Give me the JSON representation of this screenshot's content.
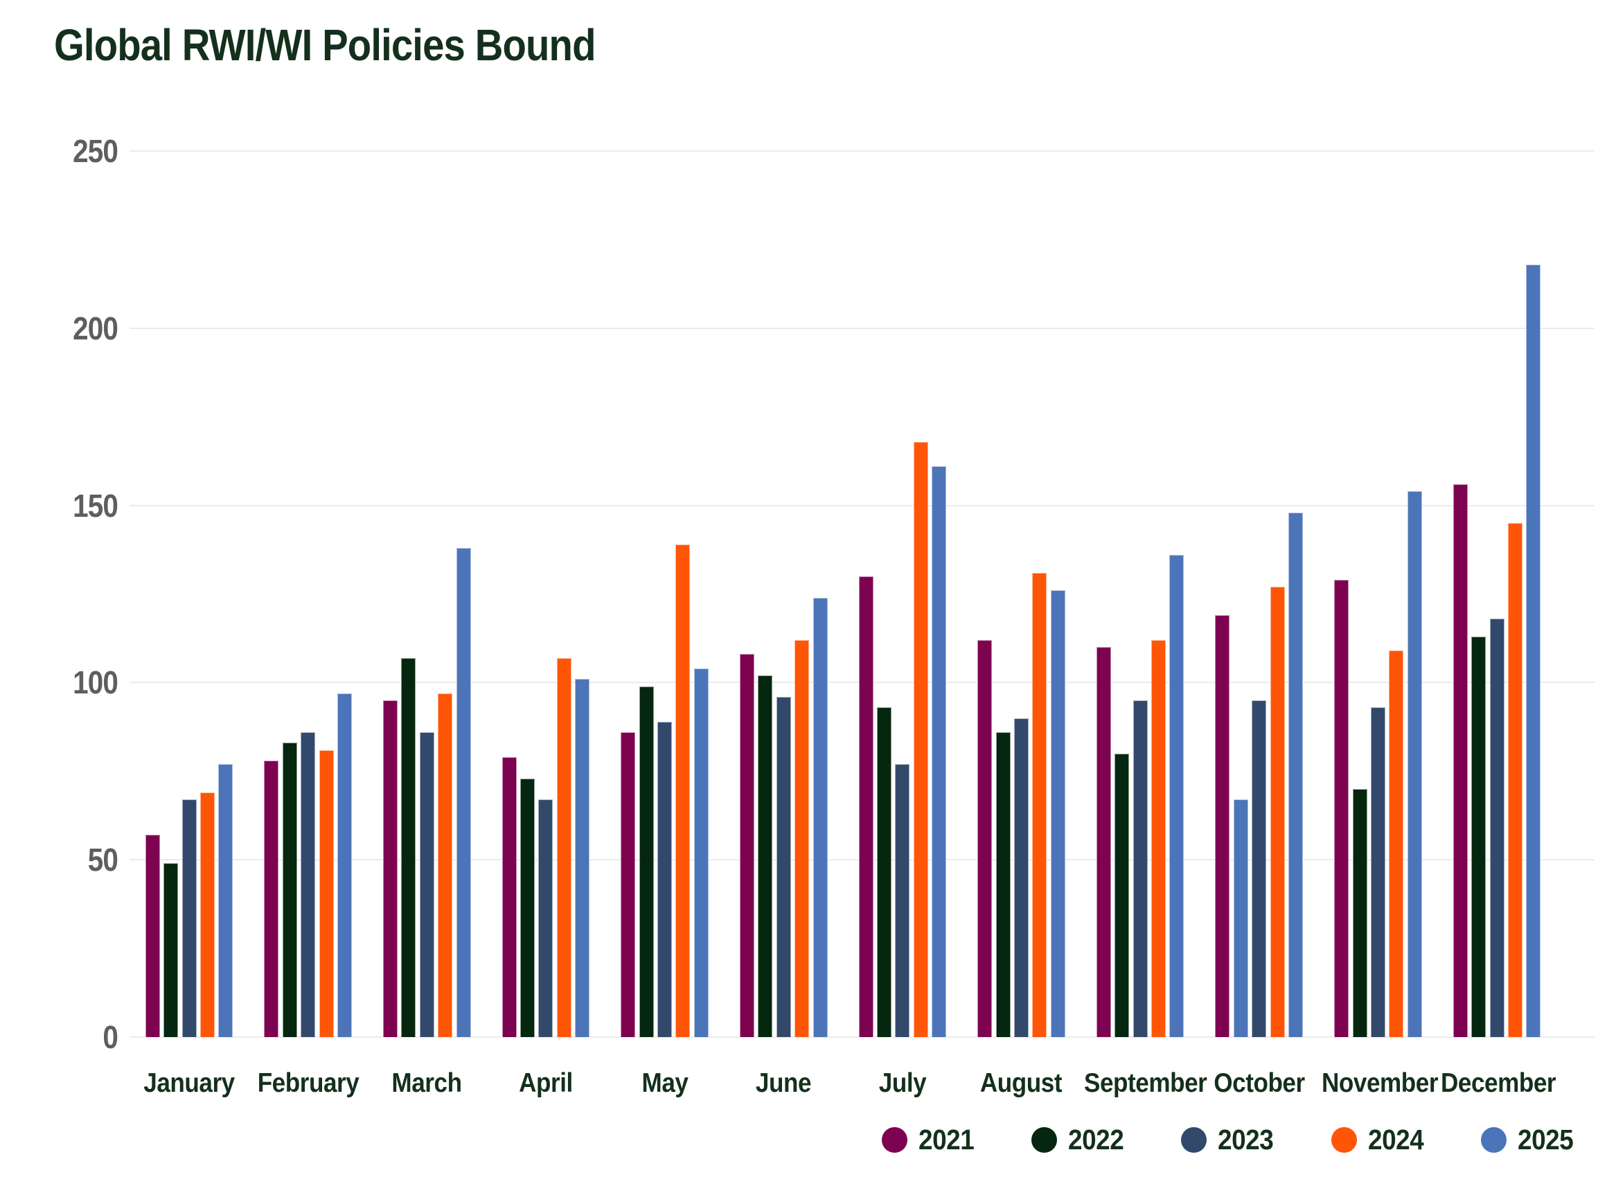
{
  "title": "Global RWI/WI Policies Bound",
  "chart_data": {
    "type": "bar",
    "categories": [
      "January",
      "February",
      "March",
      "April",
      "May",
      "June",
      "July",
      "August",
      "September",
      "October",
      "November",
      "December"
    ],
    "series": [
      {
        "name": "2021",
        "color": "#7D0351",
        "values": [
          57,
          78,
          95,
          79,
          86,
          108,
          130,
          112,
          110,
          119,
          129,
          156
        ]
      },
      {
        "name": "2022",
        "color": "#06270F",
        "values": [
          49,
          83,
          107,
          73,
          99,
          102,
          93,
          86,
          80,
          67,
          70,
          113
        ]
      },
      {
        "name": "2023",
        "color": "#33496B",
        "values": [
          67,
          86,
          86,
          67,
          89,
          96,
          77,
          90,
          95,
          95,
          93,
          118
        ]
      },
      {
        "name": "2024",
        "color": "#FF5506",
        "values": [
          69,
          81,
          97,
          107,
          139,
          112,
          168,
          131,
          112,
          127,
          109,
          145
        ]
      },
      {
        "name": "2025",
        "color": "#4C74B9",
        "values": [
          77,
          97,
          138,
          101,
          104,
          124,
          161,
          126,
          136,
          148,
          154,
          218
        ]
      }
    ],
    "bar_color_overrides": [
      {
        "series": "2022",
        "category": "October",
        "color": "#4C74B9"
      }
    ],
    "title": "Global RWI/WI Policies Bound",
    "xlabel": "",
    "ylabel": "",
    "ylim": [
      0,
      250
    ],
    "yticks": [
      0,
      50,
      100,
      150,
      200,
      250
    ],
    "grid": true,
    "legend_position": "bottom-right"
  },
  "colors": {
    "title_text": "#14301C",
    "month_label_text": "#14301C",
    "legend_label_text": "#14301C",
    "axis_tick_text": "#5E5E5E",
    "gridline": "#E9EDE9",
    "background": "#FFFFFF"
  }
}
